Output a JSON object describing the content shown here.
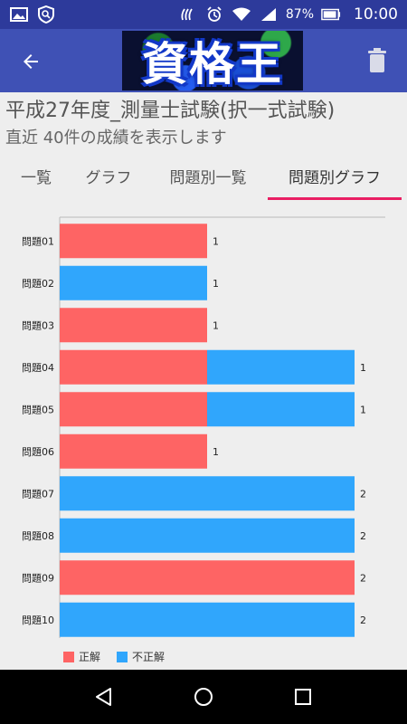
{
  "status": {
    "battery": "87%",
    "time": "10:00"
  },
  "app": {
    "logo_text": "資格王"
  },
  "header": {
    "title": "平成27年度_測量士試験(択一式試験)",
    "subtitle": "直近 40件の成績を表示します"
  },
  "tabs": [
    {
      "label": "一覧"
    },
    {
      "label": "グラフ"
    },
    {
      "label": "問題別一覧"
    },
    {
      "label": "問題別グラフ"
    }
  ],
  "active_tab": 3,
  "colors": {
    "correct": "#fe6464",
    "incorrect": "#30a6fc",
    "accent": "#e91e63",
    "appbar": "#3f51b5",
    "statusbar": "#2d3a9b"
  },
  "legend": {
    "correct": "正解",
    "incorrect": "不正解"
  },
  "chart_data": {
    "type": "bar",
    "orientation": "horizontal",
    "stacked": true,
    "categories": [
      "問題01",
      "問題02",
      "問題03",
      "問題04",
      "問題05",
      "問題06",
      "問題07",
      "問題08",
      "問題09",
      "問題10"
    ],
    "series": [
      {
        "name": "正解",
        "values": [
          1,
          0,
          1,
          1,
          1,
          1,
          0,
          0,
          2,
          0
        ]
      },
      {
        "name": "不正解",
        "values": [
          0,
          1,
          0,
          1,
          1,
          0,
          2,
          2,
          0,
          2
        ]
      }
    ],
    "xlim": [
      0,
      2
    ],
    "grid": false,
    "legend_position": "bottom-left"
  }
}
